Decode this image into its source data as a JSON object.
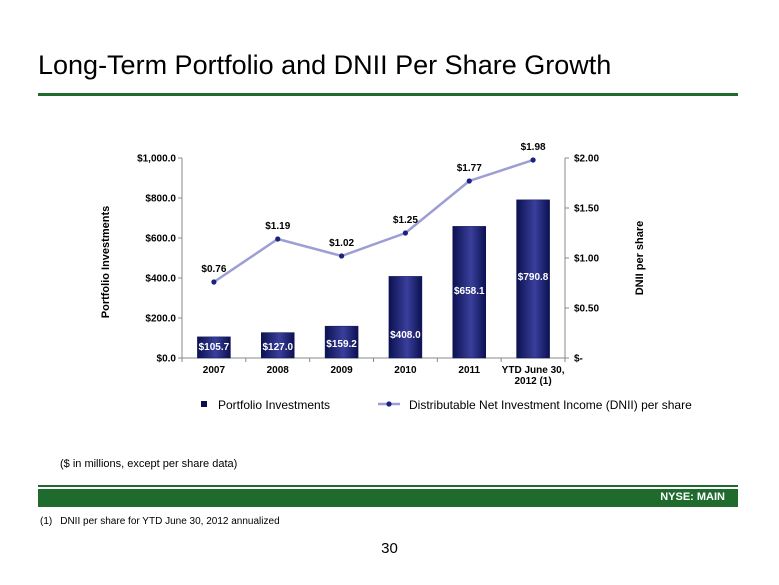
{
  "page": {
    "title": "Long-Term Portfolio and DNII Per Share Growth",
    "units_note": "($ in millions, except per share data)",
    "ticker": "NYSE:  MAIN",
    "footnote_number": "(1)",
    "footnote_text": "DNII per share for YTD June 30, 2012 annualized",
    "page_number": "30"
  },
  "colors": {
    "accent_green": "#1f6b2e",
    "bar_dark": "#0b1150",
    "bar_light": "#3a3f9c",
    "line": "#9d9ed4",
    "marker": "#1a237e"
  },
  "chart_data": {
    "type": "bar",
    "categories": [
      "2007",
      "2008",
      "2009",
      "2010",
      "2011",
      "YTD June 30,\n2012 (1)"
    ],
    "series": [
      {
        "name": "Portfolio Investments",
        "type": "bar",
        "axis": "left",
        "values": [
          105.7,
          127.0,
          159.2,
          408.0,
          658.1,
          790.8
        ],
        "labels": [
          "$105.7",
          "$127.0",
          "$159.2",
          "$408.0",
          "$658.1",
          "$790.8"
        ]
      },
      {
        "name": "Distributable Net Investment Income (DNII) per share",
        "type": "line",
        "axis": "right",
        "values": [
          0.76,
          1.19,
          1.02,
          1.25,
          1.77,
          1.98
        ],
        "labels": [
          "$0.76",
          "$1.19",
          "$1.02",
          "$1.25",
          "$1.77",
          "$1.98"
        ]
      }
    ],
    "ylabel": "Portfolio Investments",
    "y2label": "DNII per share",
    "ylim": [
      0,
      1000
    ],
    "y2lim": [
      0,
      2
    ],
    "yticks": [
      0,
      200,
      400,
      600,
      800,
      1000
    ],
    "ytick_labels": [
      "$0.0",
      "$200.0",
      "$400.0",
      "$600.0",
      "$800.0",
      "$1,000.0"
    ],
    "y2ticks": [
      0,
      0.5,
      1,
      1.5,
      2
    ],
    "y2tick_labels": [
      "$-",
      "$0.50",
      "$1.00",
      "$1.50",
      "$2.00"
    ],
    "grid": false,
    "legend_position": "bottom"
  }
}
